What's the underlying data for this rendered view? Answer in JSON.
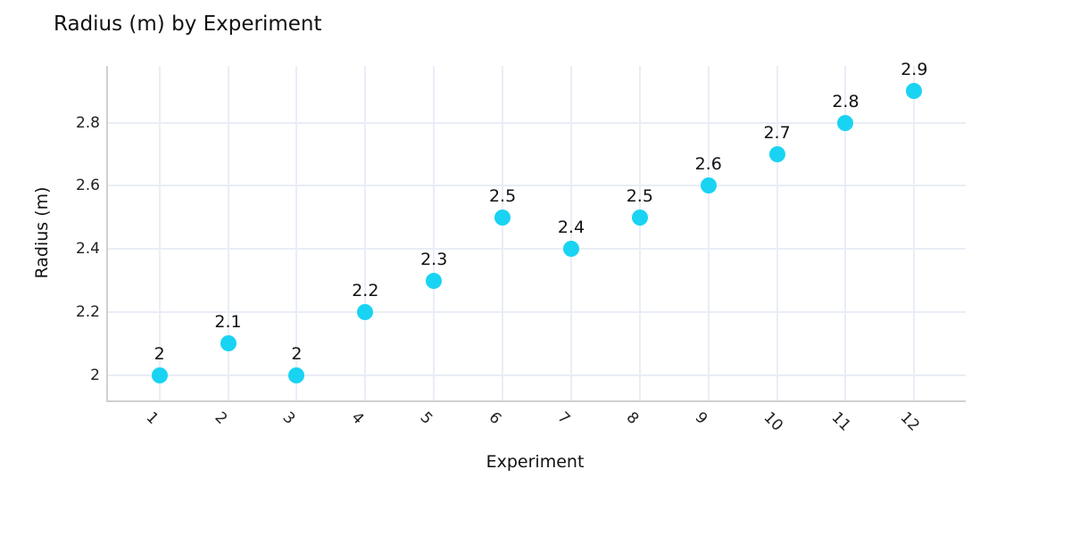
{
  "chart_data": {
    "type": "scatter",
    "title": "Radius (m) by Experiment",
    "xlabel": "Experiment",
    "ylabel": "Radius (m)",
    "categories": [
      1,
      2,
      3,
      4,
      5,
      6,
      7,
      8,
      9,
      10,
      11,
      12
    ],
    "values": [
      2,
      2.1,
      2,
      2.2,
      2.3,
      2.5,
      2.4,
      2.5,
      2.6,
      2.7,
      2.8,
      2.9
    ],
    "point_labels": [
      "2",
      "2.1",
      "2",
      "2.2",
      "2.3",
      "2.5",
      "2.4",
      "2.5",
      "2.6",
      "2.7",
      "2.8",
      "2.9"
    ],
    "x_tick_labels": [
      "1",
      "2",
      "3",
      "4",
      "5",
      "6",
      "7",
      "8",
      "9",
      "10",
      "11",
      "12"
    ],
    "y_ticks": [
      2,
      2.2,
      2.4,
      2.6,
      2.8
    ],
    "y_tick_labels": [
      "2",
      "2.2",
      "2.4",
      "2.6",
      "2.8"
    ],
    "xlim": [
      0.25,
      12.75
    ],
    "ylim": [
      1.92,
      2.98
    ],
    "grid": true,
    "legend": "none",
    "x_tick_rotation_deg": 45,
    "colors": {
      "marker": "#19d3f3",
      "grid": "#e9edf6",
      "axis_line": "#d0d0d0",
      "text": "#111111"
    }
  }
}
